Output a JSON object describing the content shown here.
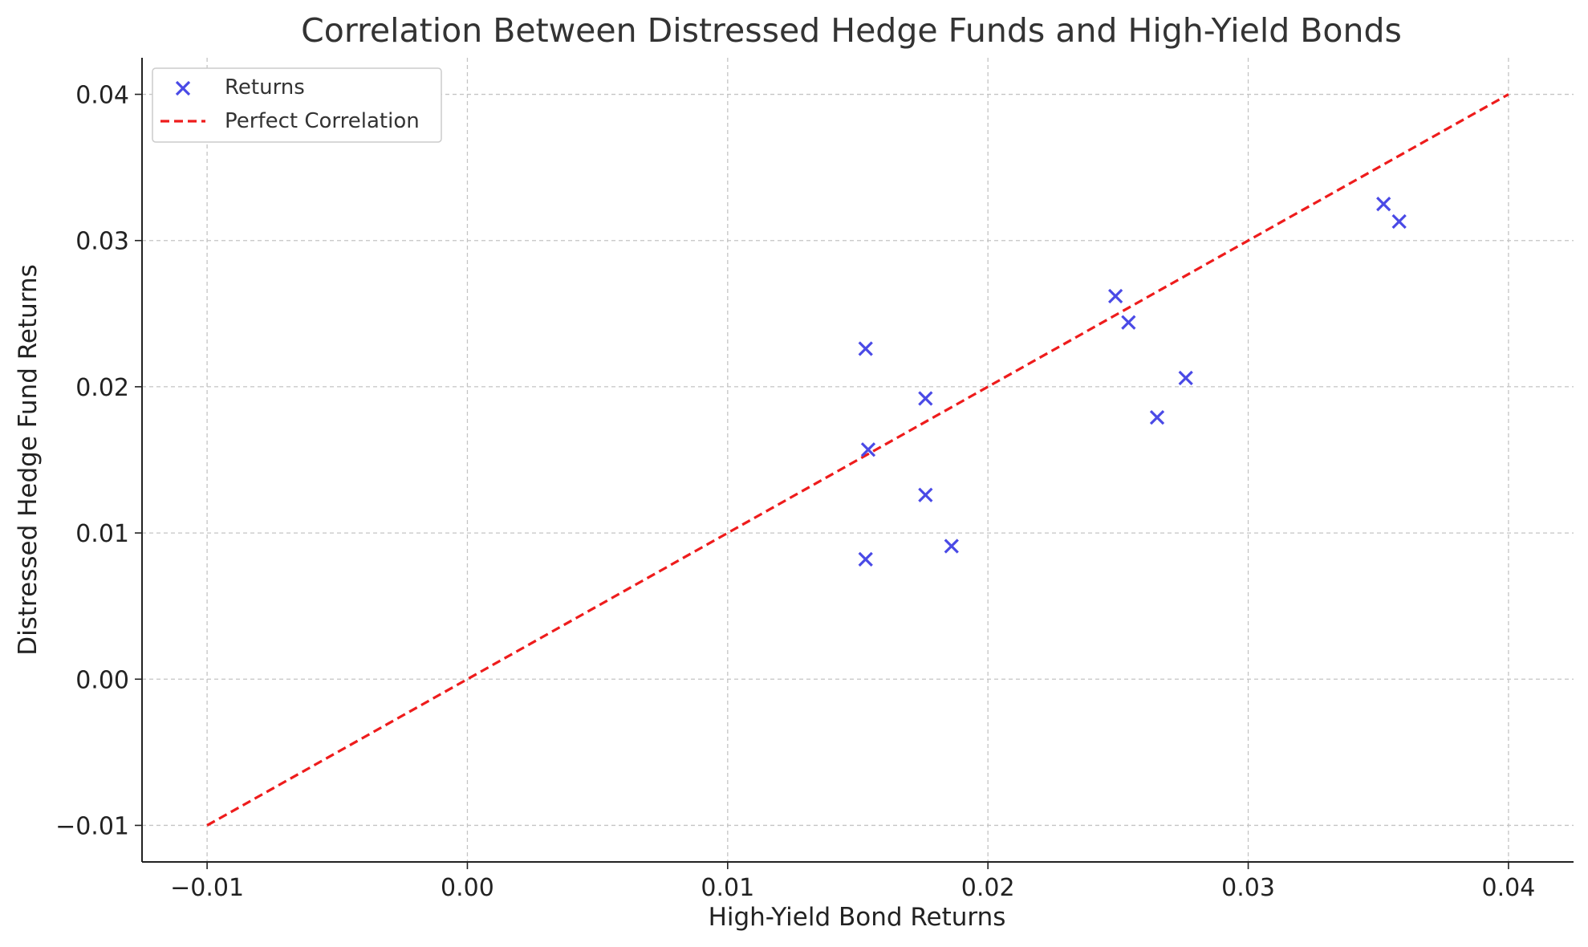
{
  "chart_data": {
    "type": "scatter",
    "title": "Correlation Between Distressed Hedge Funds and High-Yield Bonds",
    "xlabel": "High-Yield Bond Returns",
    "ylabel": "Distressed Hedge Fund Returns",
    "xlim": [
      -0.0125,
      0.0425
    ],
    "ylim": [
      -0.0125,
      0.0425
    ],
    "xticks": [
      -0.01,
      0.0,
      0.01,
      0.02,
      0.03,
      0.04
    ],
    "yticks": [
      -0.01,
      0.0,
      0.01,
      0.02,
      0.03,
      0.04
    ],
    "xtick_labels": [
      "−0.01",
      "0.00",
      "0.01",
      "0.02",
      "0.03",
      "0.04"
    ],
    "ytick_labels": [
      "−0.01",
      "0.00",
      "0.01",
      "0.02",
      "0.03",
      "0.04"
    ],
    "grid": true,
    "legend_position": "top-left",
    "series": [
      {
        "name": "Returns",
        "kind": "scatter",
        "marker": "x",
        "color": "#4a4ae6",
        "x": [
          0.0153,
          0.0176,
          0.0154,
          0.0176,
          0.0153,
          0.0186,
          0.0249,
          0.0254,
          0.0276,
          0.0265,
          0.0352,
          0.0358
        ],
        "y": [
          0.0226,
          0.0192,
          0.0157,
          0.0126,
          0.0082,
          0.0091,
          0.0262,
          0.0244,
          0.0206,
          0.0179,
          0.0325,
          0.0313
        ]
      },
      {
        "name": "Perfect Correlation",
        "kind": "line",
        "style": "dashed",
        "color": "#ee1c1c",
        "x": [
          -0.01,
          0.04
        ],
        "y": [
          -0.01,
          0.04
        ]
      }
    ]
  }
}
